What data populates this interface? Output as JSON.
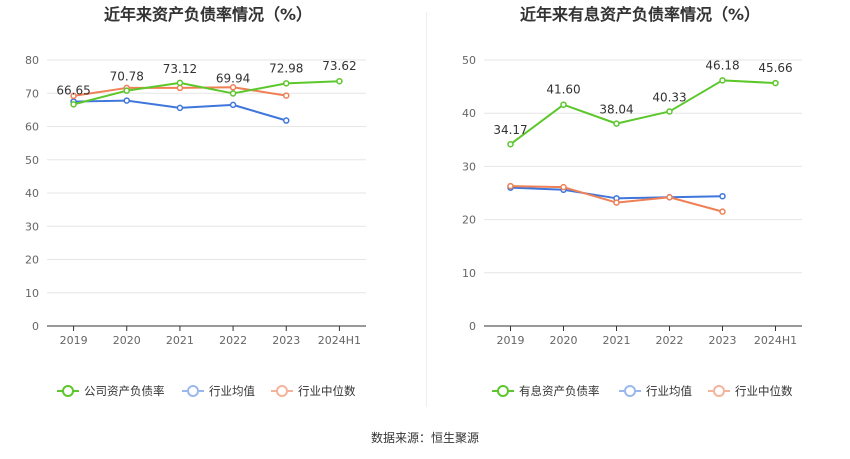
{
  "source_label": "数据来源：恒生聚源",
  "chart_data": [
    {
      "type": "line",
      "title": "近年来资产负债率情况（%）",
      "categories": [
        "2019",
        "2020",
        "2021",
        "2022",
        "2023",
        "2024H1"
      ],
      "y_ticks": [
        "0",
        "10",
        "20",
        "30",
        "40",
        "50",
        "60",
        "70",
        "80"
      ],
      "ylim": [
        0,
        80
      ],
      "grid": true,
      "legend_position": "bottom",
      "series": [
        {
          "name": "公司资产负债率",
          "color": "#5cc72b",
          "values": [
            66.65,
            70.78,
            73.12,
            69.94,
            72.98,
            73.62
          ],
          "labels": [
            "66.65",
            "70.78",
            "73.12",
            "69.94",
            "72.98",
            "73.62"
          ]
        },
        {
          "name": "行业均值",
          "color": "#3f76dc",
          "values": [
            67.5,
            67.8,
            65.6,
            66.5,
            61.8,
            null
          ]
        },
        {
          "name": "行业中位数",
          "color": "#ef8055",
          "values": [
            69.2,
            71.6,
            71.6,
            71.8,
            69.3,
            null
          ]
        }
      ]
    },
    {
      "type": "line",
      "title": "近年来有息资产负债率情况（%）",
      "categories": [
        "2019",
        "2020",
        "2021",
        "2022",
        "2023",
        "2024H1"
      ],
      "y_ticks": [
        "0",
        "10",
        "20",
        "30",
        "40",
        "50"
      ],
      "ylim": [
        0,
        50
      ],
      "grid": true,
      "legend_position": "bottom",
      "series": [
        {
          "name": "有息资产负债率",
          "color": "#5cc72b",
          "values": [
            34.17,
            41.6,
            38.04,
            40.33,
            46.18,
            45.66
          ],
          "labels": [
            "34.17",
            "41.60",
            "38.04",
            "40.33",
            "46.18",
            "45.66"
          ]
        },
        {
          "name": "行业均值",
          "color": "#3f76dc",
          "values": [
            26.0,
            25.6,
            24.0,
            24.2,
            24.4,
            null
          ]
        },
        {
          "name": "行业中位数",
          "color": "#ef8055",
          "values": [
            26.3,
            26.1,
            23.2,
            24.2,
            21.5,
            null
          ]
        }
      ]
    }
  ]
}
